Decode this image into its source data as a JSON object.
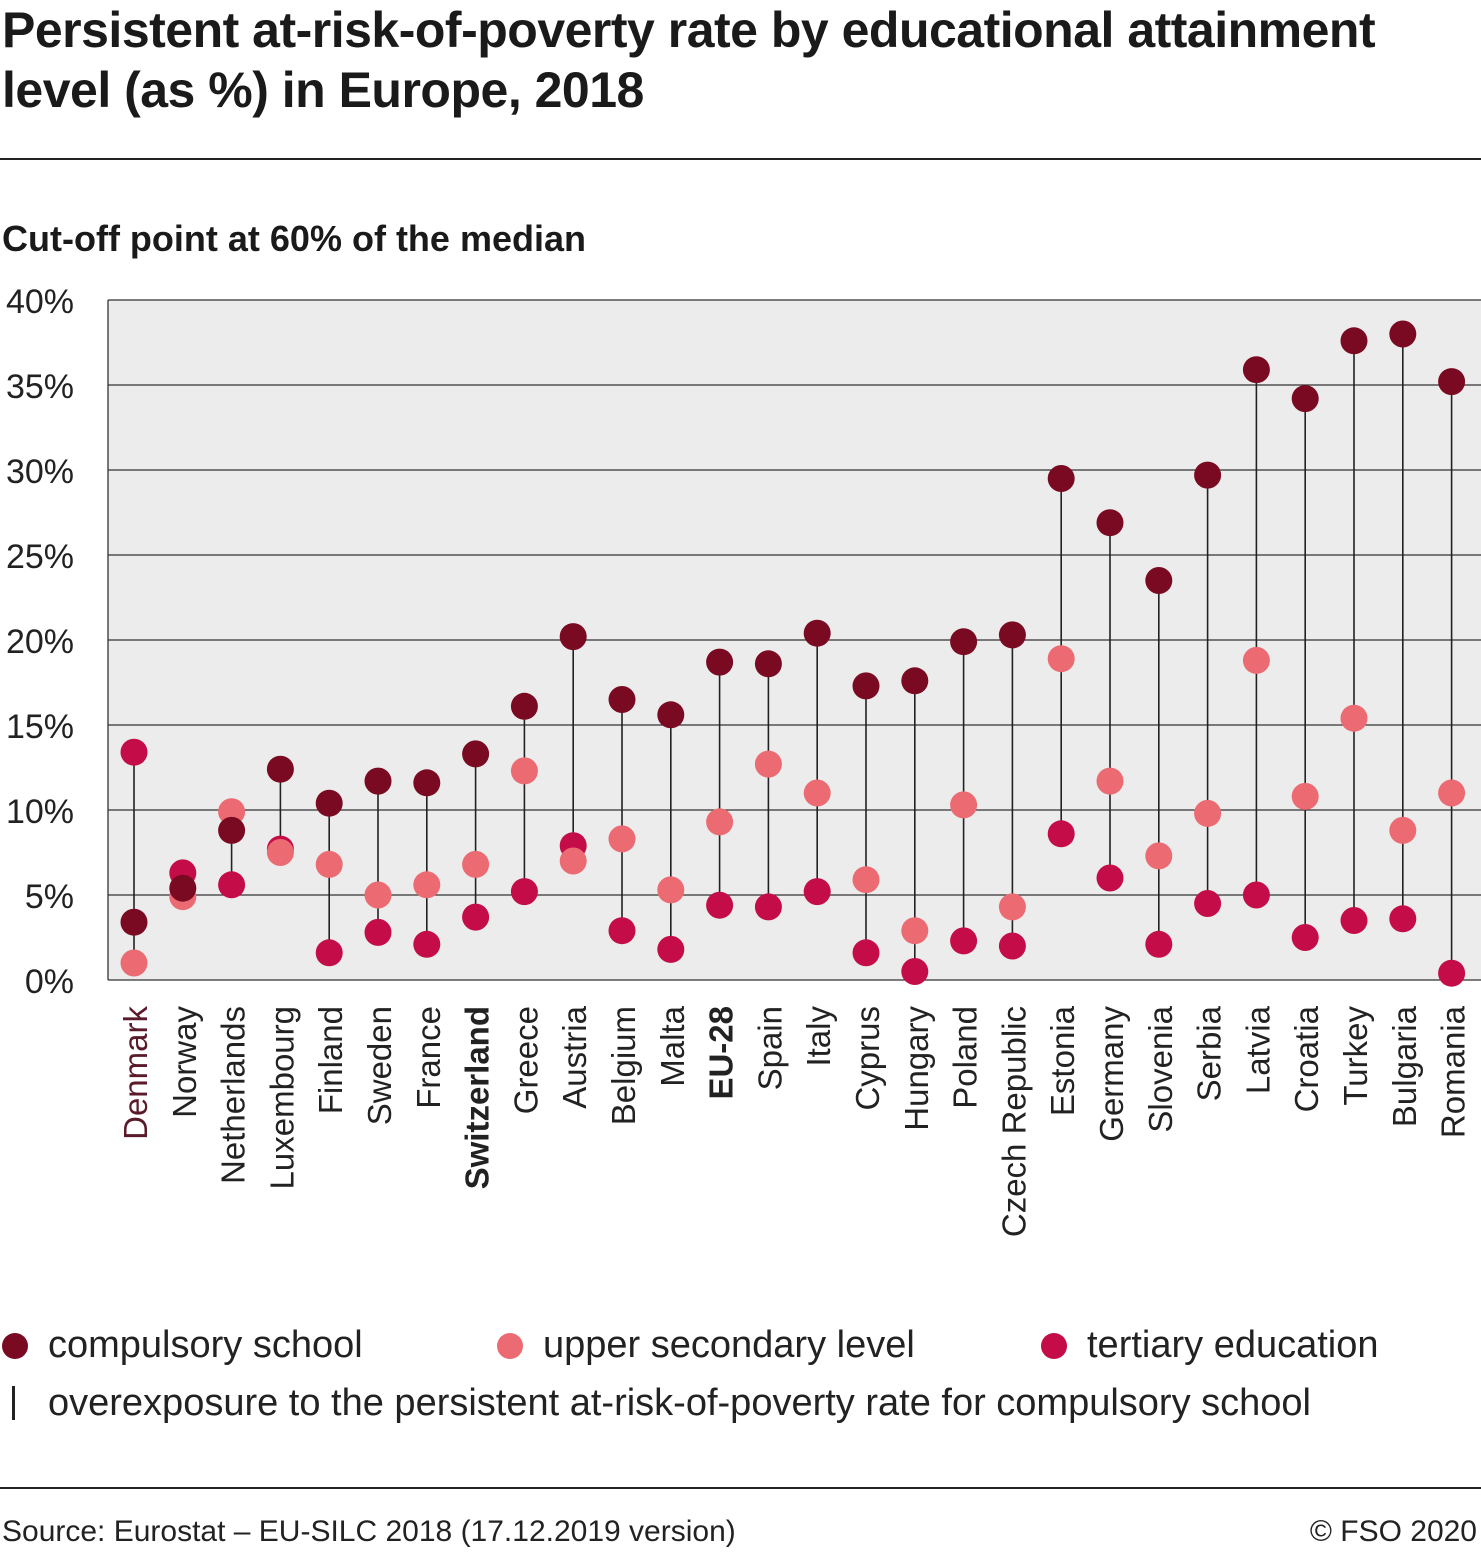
{
  "header": {
    "title": "Persistent at-risk-of-poverty rate by educational attainment level (as %) in Europe, 2018",
    "subtitle": "Cut-off point at 60% of the median"
  },
  "colors": {
    "compulsory": "#7a0a22",
    "upper_secondary": "#ec6b73",
    "tertiary": "#c40d48",
    "plot_background": "#ececec",
    "grid": "#333333"
  },
  "legend": {
    "compulsory_label": "compulsory school",
    "upper_secondary_label": "upper secondary level",
    "tertiary_label": "tertiary education",
    "line_label": "overexposure to the persistent at-risk-of-poverty rate for compulsory school"
  },
  "footer": {
    "source": "Source: Eurostat – EU-SILC 2018 (17.12.2019 version)",
    "copyright": "© FSO 2020"
  },
  "chart_data": {
    "type": "scatter",
    "title": "Persistent at-risk-of-poverty rate by educational attainment level (as %) in Europe, 2018",
    "subtitle": "Cut-off point at 60% of the median",
    "ylim": [
      0,
      40
    ],
    "yticks": [
      0,
      5,
      10,
      15,
      20,
      25,
      30,
      35,
      40
    ],
    "ytick_labels": [
      "0%",
      "5%",
      "10%",
      "15%",
      "20%",
      "25%",
      "30%",
      "35%",
      "40%"
    ],
    "grid": true,
    "legend_position": "bottom",
    "categories": [
      "Denmark",
      "Norway",
      "Netherlands",
      "Luxembourg",
      "Finland",
      "Sweden",
      "France",
      "Switzerland",
      "Greece",
      "Austria",
      "Belgium",
      "Malta",
      "EU-28",
      "Spain",
      "Italy",
      "Cyprus",
      "Hungary",
      "Poland",
      "Czech Republic",
      "Estonia",
      "Germany",
      "Slovenia",
      "Serbia",
      "Latvia",
      "Croatia",
      "Turkey",
      "Bulgaria",
      "Romania"
    ],
    "bold_categories": [
      "Switzerland",
      "EU-28"
    ],
    "series": [
      {
        "name": "compulsory school",
        "values": [
          3.4,
          5.4,
          8.8,
          12.4,
          10.4,
          11.7,
          11.6,
          13.3,
          16.1,
          20.2,
          16.5,
          15.6,
          18.7,
          18.6,
          20.4,
          17.3,
          17.6,
          19.9,
          20.3,
          29.5,
          26.9,
          23.5,
          29.7,
          35.9,
          34.2,
          37.6,
          38.0,
          35.2
        ]
      },
      {
        "name": "upper secondary level",
        "values": [
          1.0,
          4.9,
          9.9,
          7.5,
          6.8,
          5.0,
          5.6,
          6.8,
          12.3,
          7.0,
          8.3,
          5.3,
          9.3,
          12.7,
          11.0,
          5.9,
          2.9,
          10.3,
          4.3,
          18.9,
          11.7,
          7.3,
          9.8,
          18.8,
          10.8,
          15.4,
          8.8,
          11.0
        ]
      },
      {
        "name": "tertiary education",
        "values": [
          13.4,
          6.3,
          5.6,
          7.7,
          1.6,
          2.8,
          2.1,
          3.7,
          5.2,
          7.9,
          2.9,
          1.8,
          4.4,
          4.3,
          5.2,
          1.6,
          0.5,
          2.3,
          2.0,
          8.6,
          6.0,
          2.1,
          4.5,
          5.0,
          2.5,
          3.5,
          3.6,
          0.4
        ]
      }
    ]
  }
}
